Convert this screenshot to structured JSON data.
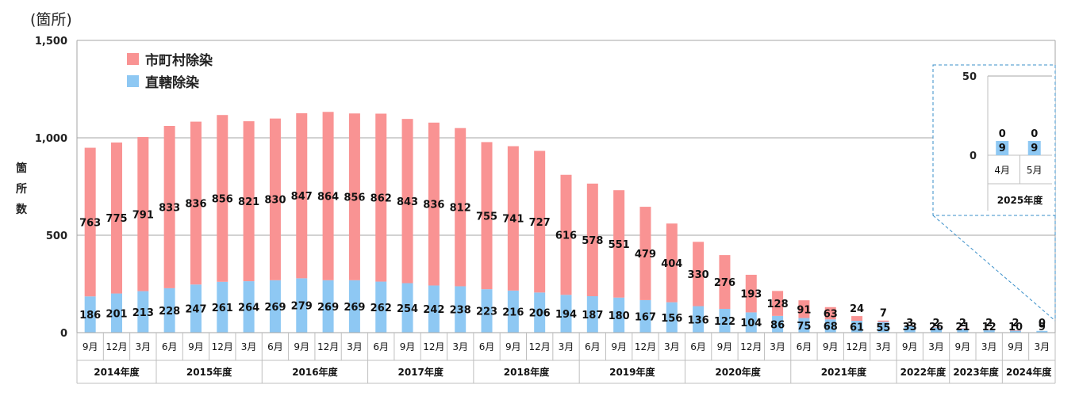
{
  "colors": {
    "municipal": "#f99393",
    "direct": "#8ec8f3",
    "grid": "#a6a6a6",
    "inset_border": "#3a8fc9"
  },
  "unit_label": "(箇所)",
  "ylabel_chars": [
    "箇",
    "所",
    "数"
  ],
  "legend": {
    "municipal": "市町村除染",
    "direct": "直轄除染"
  },
  "chart_data": {
    "type": "bar",
    "stacked": true,
    "ylim": [
      0,
      1500
    ],
    "yticks": [
      "0",
      "500",
      "1,000",
      "1,500"
    ],
    "ytick_values": [
      0,
      500,
      1000,
      1500
    ],
    "categories": [
      "9月",
      "12月",
      "3月",
      "6月",
      "9月",
      "12月",
      "3月",
      "6月",
      "9月",
      "12月",
      "3月",
      "6月",
      "9月",
      "12月",
      "3月",
      "6月",
      "9月",
      "12月",
      "3月",
      "6月",
      "9月",
      "12月",
      "3月",
      "6月",
      "9月",
      "12月",
      "3月",
      "6月",
      "9月",
      "12月",
      "3月",
      "9月",
      "3月",
      "9月",
      "3月",
      "9月",
      "3月"
    ],
    "series": [
      {
        "name": "直轄除染",
        "values": [
          186,
          201,
          213,
          228,
          247,
          261,
          264,
          269,
          279,
          269,
          269,
          262,
          254,
          242,
          238,
          223,
          216,
          206,
          194,
          187,
          180,
          167,
          156,
          136,
          122,
          104,
          86,
          75,
          68,
          61,
          55,
          33,
          26,
          21,
          12,
          10,
          9
        ]
      },
      {
        "name": "市町村除染",
        "values": [
          763,
          775,
          791,
          833,
          836,
          856,
          821,
          830,
          847,
          864,
          856,
          862,
          843,
          836,
          812,
          755,
          741,
          727,
          616,
          578,
          551,
          479,
          404,
          330,
          276,
          193,
          128,
          91,
          63,
          24,
          7,
          3,
          2,
          2,
          2,
          2,
          0
        ]
      }
    ],
    "years": [
      {
        "label": "2014年度",
        "count": 3
      },
      {
        "label": "2015年度",
        "count": 4
      },
      {
        "label": "2016年度",
        "count": 4
      },
      {
        "label": "2017年度",
        "count": 4
      },
      {
        "label": "2018年度",
        "count": 4
      },
      {
        "label": "2019年度",
        "count": 4
      },
      {
        "label": "2020年度",
        "count": 4
      },
      {
        "label": "2021年度",
        "count": 4
      },
      {
        "label": "2022年度",
        "count": 2
      },
      {
        "label": "2023年度",
        "count": 2
      },
      {
        "label": "2024年度",
        "count": 2
      }
    ],
    "inset": {
      "ylim": [
        0,
        50
      ],
      "yticks": [
        "0",
        "50"
      ],
      "ytick_values": [
        0,
        50
      ],
      "categories": [
        "4月",
        "5月"
      ],
      "direct": [
        9,
        9
      ],
      "municipal": [
        0,
        0
      ],
      "year": "2025年度"
    }
  }
}
